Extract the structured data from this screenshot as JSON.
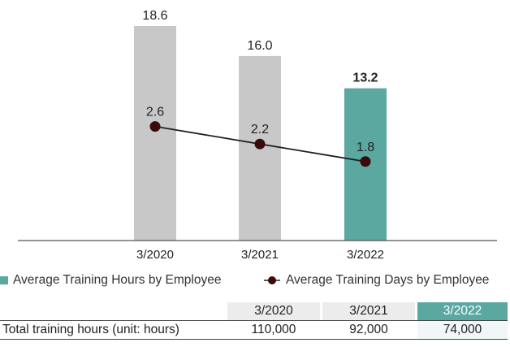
{
  "chart_data": {
    "type": "bar",
    "categories": [
      "3/2020",
      "3/2021",
      "3/2022"
    ],
    "highlight_index": 2,
    "series": [
      {
        "name": "Average Training Hours by Employee",
        "type": "bar",
        "values": [
          18.6,
          16.0,
          13.2
        ],
        "value_labels": [
          "18.6",
          "16.0",
          "13.2"
        ]
      },
      {
        "name": "Average Training Days by Employee",
        "type": "line",
        "values": [
          2.6,
          2.2,
          1.8
        ],
        "value_labels": [
          "2.6",
          "2.2",
          "1.8"
        ]
      }
    ],
    "colors": {
      "bar": "#c8c8c8",
      "bar_highlight": "#5aa8a0",
      "line": "#222222",
      "marker": "#3b0a0a"
    },
    "grid": false,
    "legend_position": "bottom"
  },
  "table": {
    "headers": [
      "3/2020",
      "3/2021",
      "3/2022"
    ],
    "rows": [
      {
        "label": "Total training hours (unit: hours)",
        "values": [
          "110,000",
          "92,000",
          "74,000"
        ]
      }
    ]
  }
}
